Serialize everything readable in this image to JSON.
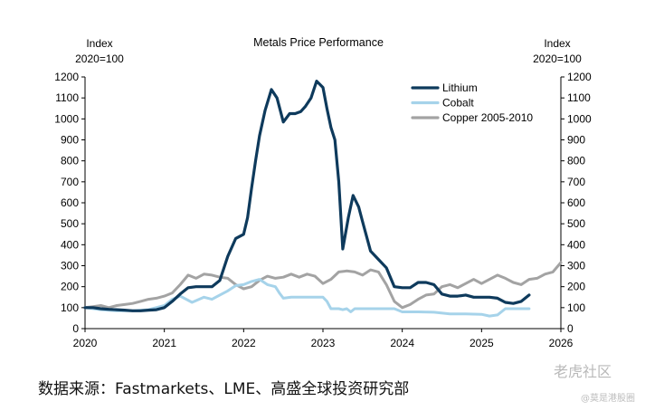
{
  "chart_data": {
    "type": "line",
    "title": "Metals Price Performance",
    "ylabel_left": [
      "Index",
      "2020=100"
    ],
    "ylabel_right": [
      "Index",
      "2020=100"
    ],
    "ylim": [
      0,
      1200
    ],
    "yticks": [
      0,
      100,
      200,
      300,
      400,
      500,
      600,
      700,
      800,
      900,
      1000,
      1100,
      1200
    ],
    "xlim": [
      2020,
      2026
    ],
    "xticks": [
      "2020",
      "2021",
      "2022",
      "2023",
      "2024",
      "2025",
      "2026"
    ],
    "legend_position": "top-right",
    "series": [
      {
        "name": "Lithium",
        "color": "#0e3a5c",
        "x": [
          2020.0,
          2020.1,
          2020.2,
          2020.3,
          2020.4,
          2020.5,
          2020.6,
          2020.7,
          2020.8,
          2020.9,
          2021.0,
          2021.1,
          2021.2,
          2021.3,
          2021.4,
          2021.5,
          2021.6,
          2021.7,
          2021.8,
          2021.9,
          2022.0,
          2022.05,
          2022.1,
          2022.15,
          2022.2,
          2022.27,
          2022.35,
          2022.42,
          2022.5,
          2022.58,
          2022.65,
          2022.72,
          2022.78,
          2022.85,
          2022.92,
          2023.0,
          2023.05,
          2023.1,
          2023.15,
          2023.2,
          2023.25,
          2023.32,
          2023.38,
          2023.45,
          2023.5,
          2023.55,
          2023.6,
          2023.7,
          2023.8,
          2023.9,
          2024.0,
          2024.1,
          2024.2,
          2024.3,
          2024.4,
          2024.5,
          2024.6,
          2024.7,
          2024.8,
          2024.9,
          2025.0,
          2025.1,
          2025.2,
          2025.3,
          2025.4,
          2025.5,
          2025.6
        ],
        "values": [
          100,
          100,
          95,
          92,
          90,
          88,
          85,
          85,
          88,
          90,
          100,
          130,
          165,
          195,
          200,
          200,
          200,
          230,
          345,
          430,
          450,
          530,
          670,
          800,
          920,
          1040,
          1140,
          1100,
          985,
          1025,
          1025,
          1035,
          1060,
          1100,
          1180,
          1150,
          1050,
          960,
          900,
          700,
          380,
          530,
          635,
          580,
          510,
          440,
          370,
          330,
          290,
          200,
          195,
          195,
          220,
          220,
          210,
          165,
          155,
          155,
          160,
          150,
          150,
          150,
          145,
          125,
          120,
          130,
          160
        ]
      },
      {
        "name": "Cobalt",
        "color": "#a6d3ea",
        "x": [
          2020.0,
          2020.2,
          2020.4,
          2020.6,
          2020.8,
          2021.0,
          2021.1,
          2021.2,
          2021.35,
          2021.5,
          2021.6,
          2021.7,
          2021.8,
          2021.9,
          2022.0,
          2022.1,
          2022.2,
          2022.3,
          2022.4,
          2022.45,
          2022.5,
          2022.6,
          2022.7,
          2022.8,
          2022.9,
          2023.0,
          2023.05,
          2023.1,
          2023.2,
          2023.25,
          2023.3,
          2023.35,
          2023.4,
          2023.5,
          2023.7,
          2023.9,
          2024.0,
          2024.2,
          2024.4,
          2024.6,
          2024.8,
          2025.0,
          2025.1,
          2025.2,
          2025.3,
          2025.4,
          2025.5,
          2025.6
        ],
        "values": [
          100,
          90,
          85,
          85,
          90,
          110,
          140,
          155,
          125,
          150,
          140,
          160,
          180,
          205,
          210,
          225,
          235,
          210,
          200,
          170,
          145,
          150,
          150,
          150,
          150,
          150,
          130,
          95,
          95,
          90,
          95,
          80,
          95,
          95,
          95,
          95,
          80,
          80,
          78,
          70,
          70,
          68,
          60,
          65,
          95,
          95,
          95,
          95
        ]
      },
      {
        "name": "Copper 2005-2010",
        "color": "#a3a3a3",
        "x": [
          2020.0,
          2020.1,
          2020.2,
          2020.3,
          2020.4,
          2020.5,
          2020.6,
          2020.7,
          2020.8,
          2020.9,
          2021.0,
          2021.1,
          2021.2,
          2021.3,
          2021.4,
          2021.5,
          2021.6,
          2021.7,
          2021.8,
          2021.9,
          2022.0,
          2022.1,
          2022.2,
          2022.3,
          2022.4,
          2022.5,
          2022.6,
          2022.7,
          2022.8,
          2022.9,
          2023.0,
          2023.1,
          2023.2,
          2023.3,
          2023.4,
          2023.5,
          2023.6,
          2023.7,
          2023.8,
          2023.9,
          2024.0,
          2024.1,
          2024.2,
          2024.3,
          2024.4,
          2024.5,
          2024.6,
          2024.7,
          2024.8,
          2024.9,
          2025.0,
          2025.1,
          2025.2,
          2025.3,
          2025.4,
          2025.5,
          2025.6,
          2025.7,
          2025.8,
          2025.9,
          2026.0
        ],
        "values": [
          100,
          105,
          110,
          100,
          110,
          115,
          120,
          130,
          140,
          145,
          155,
          170,
          210,
          255,
          240,
          260,
          255,
          245,
          240,
          210,
          190,
          200,
          230,
          250,
          240,
          245,
          260,
          245,
          260,
          250,
          215,
          235,
          270,
          275,
          270,
          255,
          280,
          270,
          210,
          130,
          100,
          115,
          140,
          160,
          165,
          200,
          210,
          195,
          215,
          235,
          215,
          235,
          255,
          240,
          220,
          210,
          235,
          240,
          260,
          270,
          315
        ]
      }
    ],
    "source": "数据来源：Fastmarkets、LME、高盛全球投资研究部"
  },
  "watermark": {
    "main": "老虎社区",
    "sub": "@莫是港股圈"
  }
}
